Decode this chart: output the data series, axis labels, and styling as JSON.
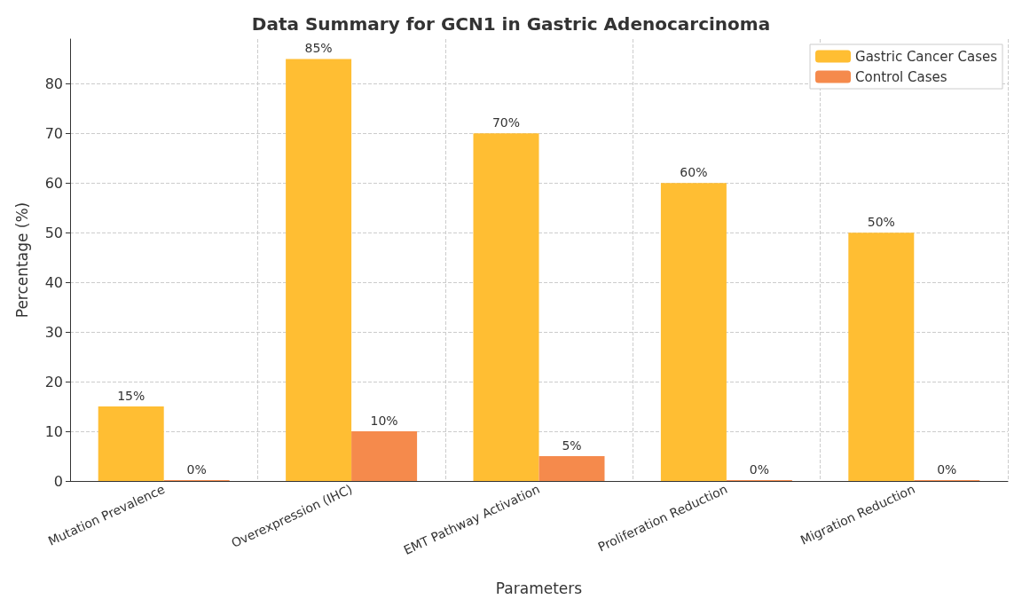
{
  "chart_data": {
    "type": "bar",
    "title": "Data Summary for GCN1 in Gastric Adenocarcinoma",
    "xlabel": "Parameters",
    "ylabel": "Percentage (%)",
    "categories": [
      "Mutation Prevalence",
      "Overexpression (IHC)",
      "EMT Pathway Activation",
      "Proliferation Reduction",
      "Migration Reduction"
    ],
    "series": [
      {
        "name": "Gastric Cancer Cases",
        "color": "#ffbe33",
        "values": [
          15,
          85,
          70,
          60,
          50
        ],
        "value_labels": [
          "15%",
          "85%",
          "70%",
          "60%",
          "50%"
        ]
      },
      {
        "name": "Control Cases",
        "color": "#f58a4c",
        "values": [
          0,
          10,
          5,
          0,
          0
        ],
        "value_labels": [
          "0%",
          "10%",
          "5%",
          "0%",
          "0%"
        ]
      }
    ],
    "ylim": [
      0,
      89
    ],
    "yticks": [
      0,
      10,
      20,
      30,
      40,
      50,
      60,
      70,
      80
    ],
    "grid": true,
    "legend": "top right"
  }
}
